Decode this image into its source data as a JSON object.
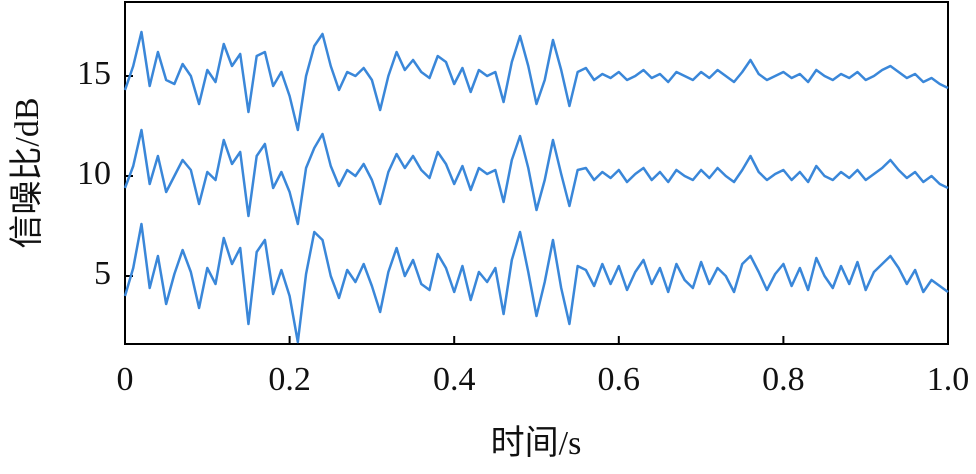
{
  "chart_data": {
    "type": "line",
    "x_label": "时间/s",
    "y_label": "信噪比/dB",
    "x": [
      0,
      0.01,
      0.02,
      0.03,
      0.04,
      0.05,
      0.06,
      0.07,
      0.08,
      0.09,
      0.1,
      0.11,
      0.12,
      0.13,
      0.14,
      0.15,
      0.16,
      0.17,
      0.18,
      0.19,
      0.2,
      0.21,
      0.22,
      0.23,
      0.24,
      0.25,
      0.26,
      0.27,
      0.28,
      0.29,
      0.3,
      0.31,
      0.32,
      0.33,
      0.34,
      0.35,
      0.36,
      0.37,
      0.38,
      0.39,
      0.4,
      0.41,
      0.42,
      0.43,
      0.44,
      0.45,
      0.46,
      0.47,
      0.48,
      0.49,
      0.5,
      0.51,
      0.52,
      0.53,
      0.54,
      0.55,
      0.56,
      0.57,
      0.58,
      0.59,
      0.6,
      0.61,
      0.62,
      0.63,
      0.64,
      0.65,
      0.66,
      0.67,
      0.68,
      0.69,
      0.7,
      0.71,
      0.72,
      0.73,
      0.74,
      0.75,
      0.76,
      0.77,
      0.78,
      0.79,
      0.8,
      0.81,
      0.82,
      0.83,
      0.84,
      0.85,
      0.86,
      0.87,
      0.88,
      0.89,
      0.9,
      0.91,
      0.92,
      0.93,
      0.94,
      0.95,
      0.96,
      0.97,
      0.98,
      0.99,
      1
    ],
    "series": [
      {
        "color": "#3a87d9",
        "values": [
          14.3,
          15.5,
          17.2,
          14.5,
          16.2,
          14.8,
          14.6,
          15.6,
          15.0,
          13.6,
          15.3,
          14.7,
          16.6,
          15.5,
          16.1,
          13.2,
          16.0,
          16.2,
          14.5,
          15.2,
          14.0,
          12.3,
          15.0,
          16.5,
          17.1,
          15.5,
          14.3,
          15.2,
          15.0,
          15.4,
          14.8,
          13.3,
          15.0,
          16.2,
          15.3,
          15.8,
          15.2,
          14.9,
          16.0,
          15.7,
          14.6,
          15.4,
          14.2,
          15.3,
          15.0,
          15.2,
          13.7,
          15.7,
          17.0,
          15.5,
          13.6,
          14.8,
          16.8,
          15.3,
          13.5,
          15.2,
          15.4,
          14.8,
          15.1,
          14.9,
          15.2,
          14.8,
          15.0,
          15.3,
          14.9,
          15.1,
          14.7,
          15.2,
          15.0,
          14.8,
          15.2,
          14.9,
          15.3,
          15.0,
          14.7,
          15.2,
          15.8,
          15.1,
          14.8,
          15.0,
          15.2,
          14.9,
          15.1,
          14.7,
          15.3,
          15.0,
          14.8,
          15.1,
          14.9,
          15.2,
          14.8,
          15.0,
          15.3,
          15.5,
          15.2,
          14.9,
          15.1,
          14.7,
          14.9,
          14.6,
          14.4
        ]
      },
      {
        "color": "#3a87d9",
        "values": [
          9.4,
          10.5,
          12.3,
          9.6,
          11.0,
          9.2,
          10.0,
          10.8,
          10.3,
          8.6,
          10.2,
          9.8,
          11.8,
          10.6,
          11.2,
          8.0,
          11.0,
          11.6,
          9.4,
          10.2,
          9.2,
          7.6,
          10.4,
          11.4,
          12.1,
          10.5,
          9.5,
          10.3,
          10.0,
          10.6,
          9.8,
          8.6,
          10.2,
          11.1,
          10.4,
          11.0,
          10.3,
          9.9,
          11.2,
          10.6,
          9.6,
          10.5,
          9.3,
          10.4,
          10.1,
          10.3,
          8.7,
          10.8,
          12.0,
          10.4,
          8.3,
          9.8,
          11.8,
          10.1,
          8.5,
          10.3,
          10.4,
          9.8,
          10.2,
          9.9,
          10.3,
          9.7,
          10.1,
          10.4,
          9.8,
          10.2,
          9.7,
          10.3,
          10.0,
          9.8,
          10.3,
          9.9,
          10.4,
          10.0,
          9.7,
          10.3,
          11.0,
          10.2,
          9.8,
          10.1,
          10.3,
          9.8,
          10.2,
          9.7,
          10.5,
          10.0,
          9.8,
          10.2,
          9.9,
          10.3,
          9.8,
          10.1,
          10.4,
          10.8,
          10.3,
          9.9,
          10.2,
          9.7,
          10.0,
          9.6,
          9.4
        ]
      },
      {
        "color": "#3a87d9",
        "values": [
          4.0,
          5.4,
          7.6,
          4.4,
          6.0,
          3.6,
          5.1,
          6.3,
          5.2,
          3.4,
          5.4,
          4.6,
          6.9,
          5.6,
          6.4,
          2.6,
          6.2,
          6.8,
          4.1,
          5.3,
          4.0,
          1.7,
          5.1,
          7.2,
          6.8,
          5.0,
          3.9,
          5.3,
          4.7,
          5.6,
          4.5,
          3.2,
          5.2,
          6.4,
          5.0,
          5.8,
          4.6,
          4.3,
          6.1,
          5.4,
          4.2,
          5.5,
          3.8,
          5.2,
          4.7,
          5.4,
          3.1,
          5.8,
          7.2,
          5.2,
          3.0,
          4.7,
          6.8,
          4.4,
          2.6,
          5.5,
          5.3,
          4.5,
          5.6,
          4.6,
          5.5,
          4.3,
          5.2,
          5.8,
          4.6,
          5.4,
          4.2,
          5.6,
          4.8,
          4.4,
          5.7,
          4.6,
          5.4,
          5.0,
          4.2,
          5.6,
          6.0,
          5.2,
          4.3,
          5.1,
          5.6,
          4.5,
          5.4,
          4.3,
          5.9,
          5.0,
          4.4,
          5.5,
          4.6,
          5.7,
          4.3,
          5.2,
          5.6,
          6.0,
          5.4,
          4.6,
          5.3,
          4.2,
          4.8,
          4.5,
          4.2
        ]
      }
    ],
    "xlim": [
      0,
      1
    ],
    "xticks": [
      0,
      0.2,
      0.4,
      0.6,
      0.8,
      {
        "value": 1,
        "label": "1.0"
      }
    ],
    "ylim": [
      1.6,
      18.7
    ],
    "yticks": [
      5,
      10,
      15
    ],
    "grid": false
  }
}
